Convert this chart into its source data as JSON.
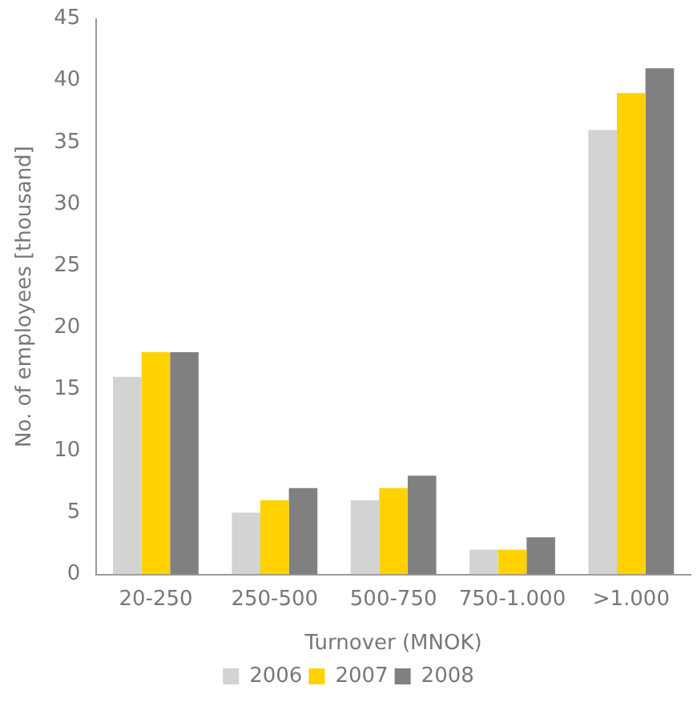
{
  "chart_data": {
    "type": "bar",
    "xlabel": "Turnover (MNOK)",
    "ylabel": "No. of employees [thousand]",
    "categories": [
      "20-250",
      "250-500",
      "500-750",
      "750-1.000",
      ">1.000"
    ],
    "series": [
      {
        "name": "2006",
        "color": "#d3d3d3",
        "values": [
          16,
          5,
          6,
          2,
          36
        ]
      },
      {
        "name": "2007",
        "color": "#ffd200",
        "values": [
          18,
          6,
          7,
          2,
          39
        ]
      },
      {
        "name": "2008",
        "color": "#808080",
        "values": [
          18,
          7,
          8,
          3,
          41
        ]
      }
    ],
    "ylim": [
      0,
      45
    ],
    "yticks": [
      0,
      5,
      10,
      15,
      20,
      25,
      30,
      35,
      40,
      45
    ],
    "grid": false,
    "legend": "bottom"
  }
}
